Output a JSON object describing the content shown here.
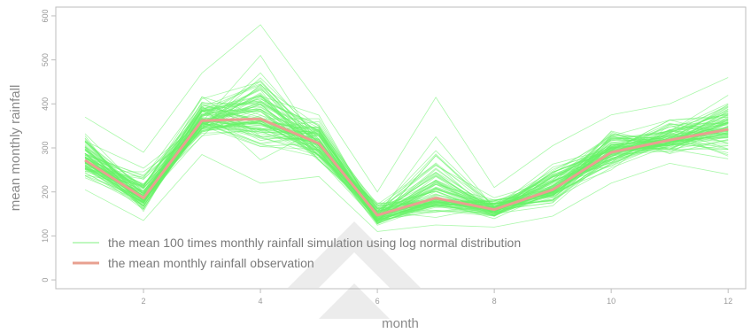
{
  "chart_data": {
    "type": "line",
    "title": "",
    "xlabel": "month",
    "ylabel": "mean monthly rainfall",
    "xlim": [
      0.5,
      12.3
    ],
    "ylim": [
      -20,
      620
    ],
    "x_ticks": [
      2,
      4,
      6,
      8,
      10,
      12
    ],
    "y_ticks": [
      0,
      100,
      200,
      300,
      400,
      500,
      600
    ],
    "x": [
      1,
      2,
      3,
      4,
      5,
      6,
      7,
      8,
      9,
      10,
      11,
      12
    ],
    "series": [
      {
        "name": "the mean monthly rainfall observation",
        "color": "#e8a090",
        "values": [
          272,
          186,
          362,
          366,
          310,
          147,
          186,
          160,
          205,
          290,
          318,
          342
        ]
      },
      {
        "name": "the mean 100 times monthly rainfall simulation using log normal distribution",
        "color": "#66f266",
        "type": "band",
        "mean": [
          272,
          186,
          362,
          366,
          310,
          147,
          186,
          160,
          205,
          290,
          318,
          342
        ],
        "min": [
          205,
          135,
          285,
          220,
          235,
          110,
          125,
          120,
          145,
          220,
          265,
          240
        ],
        "max": [
          370,
          290,
          470,
          580,
          400,
          200,
          415,
          210,
          305,
          375,
          400,
          460
        ]
      }
    ],
    "legend_position": "bottom-left",
    "grid": false
  }
}
